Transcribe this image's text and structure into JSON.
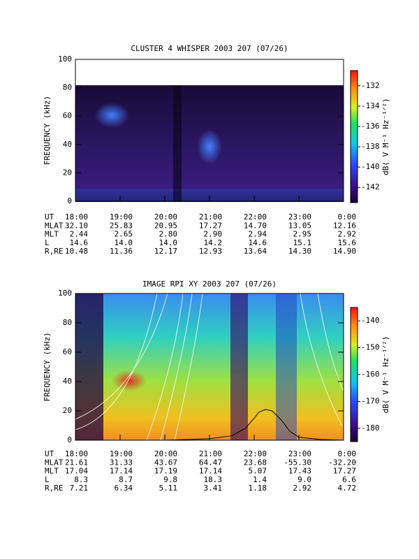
{
  "chart_data": [
    {
      "type": "spectrogram",
      "title": "CLUSTER 4 WHISPER 2003 207 (07/26)",
      "y_label": "FREQUENCY (kHz)",
      "xlim": [
        18,
        24
      ],
      "xticks": [
        {
          "value": 18,
          "label": "18:00"
        },
        {
          "value": 19,
          "label": "19:00"
        },
        {
          "value": 20,
          "label": "20:00"
        },
        {
          "value": 21,
          "label": "21:00"
        },
        {
          "value": 22,
          "label": "22:00"
        },
        {
          "value": 23,
          "label": "23:00"
        },
        {
          "value": 24,
          "label": "0:00"
        }
      ],
      "ylim": [
        0,
        100
      ],
      "yticks": [
        0,
        20,
        40,
        60,
        80,
        100
      ],
      "colorbar_label": "dB( V M⁻¹ Hz⁻¹ᐟ²)",
      "clim": [
        -143.5,
        -130.5
      ],
      "cticks": [
        -142,
        -140,
        -138,
        -136,
        -134,
        -132
      ],
      "ephemeris": {
        "labels": [
          "UT",
          "MLAT",
          "MLT",
          "L",
          "R,RE"
        ],
        "rows": [
          [
            "32.10",
            "25.83",
            "20.95",
            "17.27",
            "14.70",
            "13.05",
            "12.16"
          ],
          [
            "2.44",
            "2.65",
            "2.80",
            "2.90",
            "2.94",
            "2.95",
            "2.92"
          ],
          [
            "14.6",
            "14.0",
            "14.0",
            "14.2",
            "14.6",
            "15.1",
            "15.6"
          ],
          [
            "10.48",
            "11.36",
            "12.17",
            "12.93",
            "13.64",
            "14.30",
            "14.90"
          ]
        ]
      }
    },
    {
      "type": "spectrogram",
      "title": "IMAGE RPI XY 2003 207 (07/26)",
      "y_label": "FREQUENCY (kHz)",
      "xlim": [
        18,
        24
      ],
      "xticks": [
        {
          "value": 18,
          "label": "18:00"
        },
        {
          "value": 19,
          "label": "19:00"
        },
        {
          "value": 20,
          "label": "20:00"
        },
        {
          "value": 21,
          "label": "21:00"
        },
        {
          "value": 22,
          "label": "22:00"
        },
        {
          "value": 23,
          "label": "23:00"
        },
        {
          "value": 24,
          "label": "0:00"
        }
      ],
      "ylim": [
        0,
        100
      ],
      "yticks": [
        0,
        20,
        40,
        60,
        80,
        100
      ],
      "colorbar_label": "dB( V M⁻¹ Hz⁻¹ᐟ²)",
      "clim": [
        -185,
        -135
      ],
      "cticks": [
        -180,
        -170,
        -160,
        -150,
        -140
      ],
      "series": [
        {
          "color": "#000000",
          "x": [
            20,
            20.5,
            21,
            21.5,
            21.8,
            22,
            22.1,
            22.25,
            22.4,
            22.6,
            22.8,
            23,
            23.5,
            24
          ],
          "values": [
            0,
            0.5,
            1,
            3,
            8,
            15,
            19,
            21,
            20,
            14,
            6,
            2,
            0.5,
            0
          ]
        }
      ],
      "ephemeris": {
        "labels": [
          "UT",
          "MLAT",
          "MLT",
          "L",
          "R,RE"
        ],
        "rows": [
          [
            "21.61",
            "31.33",
            "43.67",
            "64.47",
            "23.68",
            "-55.30",
            "-32.20"
          ],
          [
            "17.04",
            "17.14",
            "17.19",
            "17.14",
            "5.07",
            "17.43",
            "17.27"
          ],
          [
            "8.3",
            "8.7",
            "9.8",
            "18.3",
            "1.4",
            "9.0",
            "6.6"
          ],
          [
            "7.21",
            "6.34",
            "5.11",
            "3.41",
            "1.18",
            "2.92",
            "4.72"
          ]
        ]
      }
    }
  ]
}
